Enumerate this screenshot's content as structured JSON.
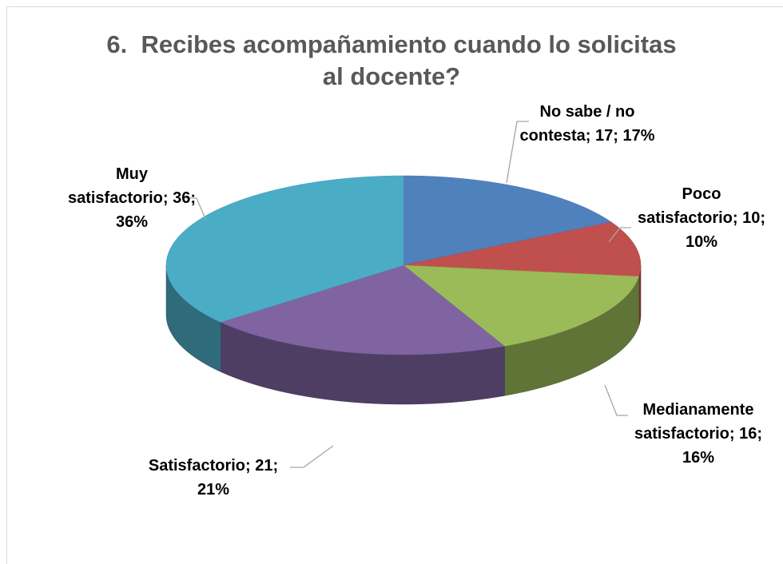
{
  "chart_data": {
    "type": "pie",
    "title": "6.  Recibes acompañamiento cuando lo solicitas al docente?",
    "categories": [
      "No sabe / no contesta",
      "Poco satisfactorio",
      "Medianamente satisfactorio",
      "Satisfactorio",
      "Muy satisfactorio"
    ],
    "values": [
      17,
      10,
      16,
      21,
      36
    ],
    "value_labels": [
      "No sabe / no contesta; 17; 17%",
      "Poco satisfactorio; 10; 10%",
      "Medianamente satisfactorio; 16; 16%",
      "Satisfactorio; 21; 21%",
      "Muy satisfactorio; 36; 36%"
    ],
    "colors": [
      "#4f81bd",
      "#c0504d",
      "#9bbb59",
      "#8064a2",
      "#4bacc6"
    ]
  }
}
